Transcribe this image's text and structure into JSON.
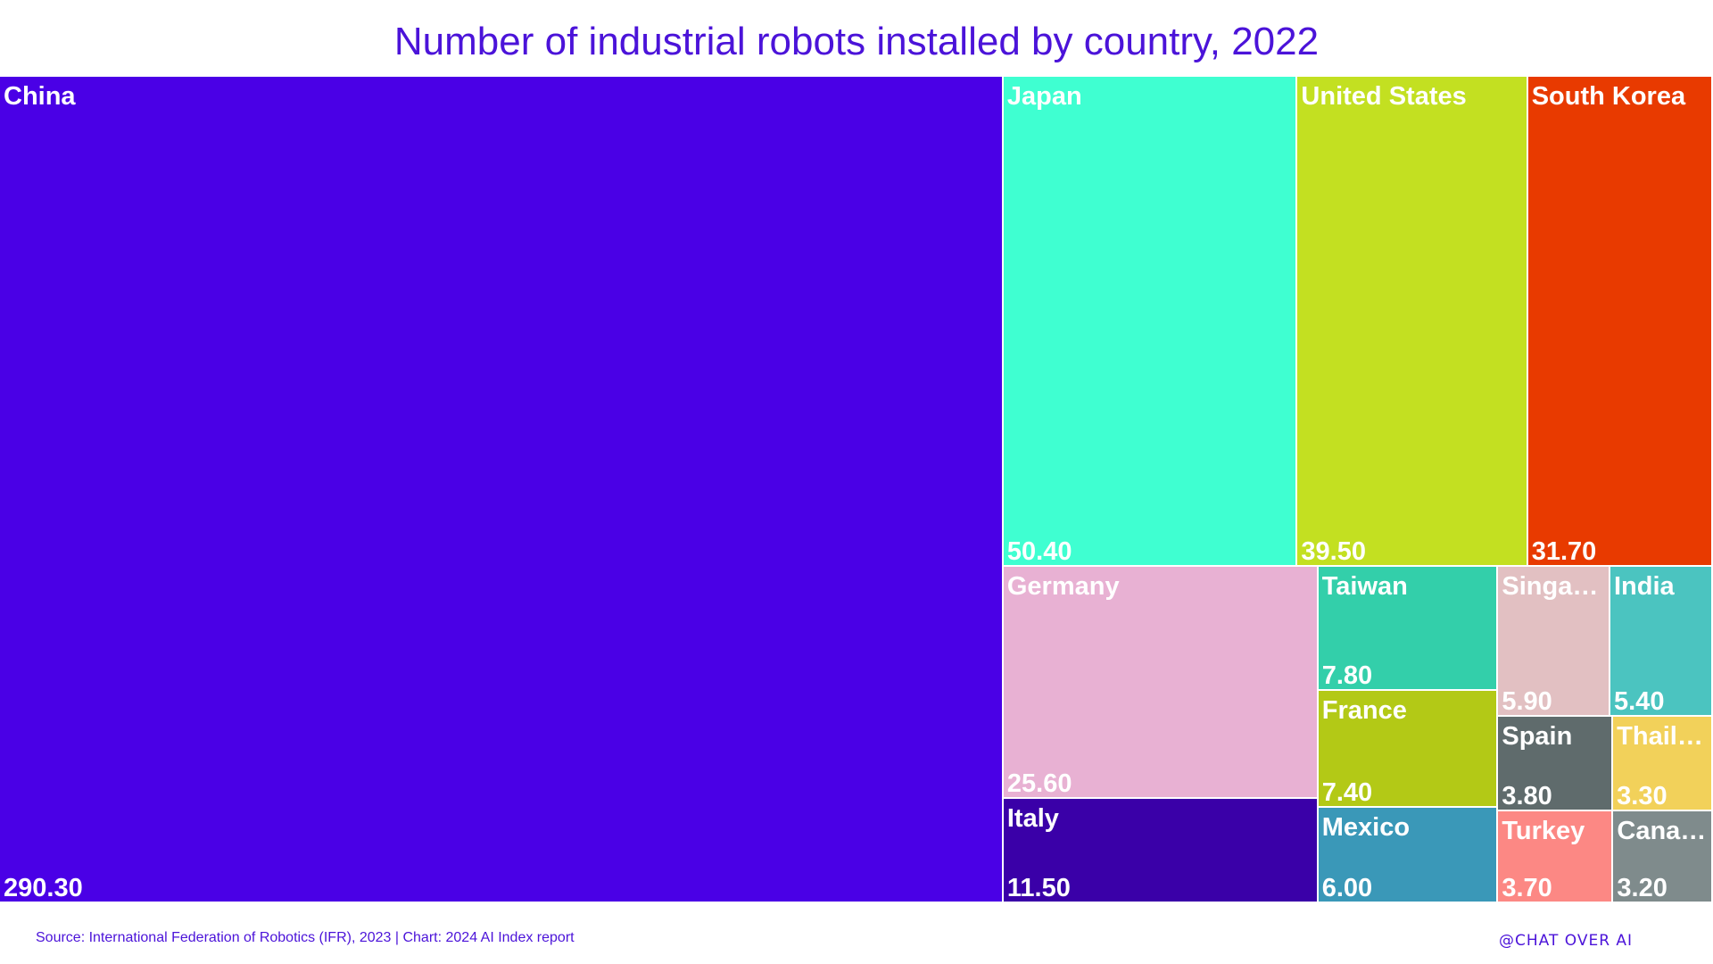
{
  "chart_data": {
    "type": "treemap",
    "title": "Number of industrial robots installed by country, 2022",
    "unit": "thousands",
    "items": [
      {
        "name": "China",
        "value": 290.3,
        "value_label": "290.30",
        "color": "#4a00e6"
      },
      {
        "name": "Japan",
        "value": 50.4,
        "value_label": "50.40",
        "color": "#3fffd1"
      },
      {
        "name": "United States",
        "value": 39.5,
        "value_label": "39.50",
        "color": "#c3e021"
      },
      {
        "name": "South Korea",
        "value": 31.7,
        "value_label": "31.70",
        "color": "#e83a00"
      },
      {
        "name": "Germany",
        "value": 25.6,
        "value_label": "25.60",
        "color": "#e8b1d3"
      },
      {
        "name": "Italy",
        "value": 11.5,
        "value_label": "11.50",
        "color": "#3a00a8"
      },
      {
        "name": "Taiwan",
        "value": 7.8,
        "value_label": "7.80",
        "color": "#33cfaa"
      },
      {
        "name": "France",
        "value": 7.4,
        "value_label": "7.40",
        "color": "#b3c916"
      },
      {
        "name": "Mexico",
        "value": 6.0,
        "value_label": "6.00",
        "color": "#3a98b8"
      },
      {
        "name": "Singapore",
        "display": "Singa…",
        "value": 5.9,
        "value_label": "5.90",
        "color": "#e2c0c2"
      },
      {
        "name": "India",
        "value": 5.4,
        "value_label": "5.40",
        "color": "#4bc4c0"
      },
      {
        "name": "Spain",
        "value": 3.8,
        "value_label": "3.80",
        "color": "#5f6b6c"
      },
      {
        "name": "Thailand",
        "display": "Thail…",
        "value": 3.3,
        "value_label": "3.30",
        "color": "#f2d15a"
      },
      {
        "name": "Turkey",
        "value": 3.7,
        "value_label": "3.70",
        "color": "#fc8884"
      },
      {
        "name": "Canada",
        "display": "Cana…",
        "value": 3.2,
        "value_label": "3.20",
        "color": "#7f8b8c"
      }
    ]
  },
  "footer": {
    "source": "Source: International Federation of Robotics (IFR), 2023 | Chart: 2024 AI Index report",
    "watermark": "@Chat Over AI"
  }
}
